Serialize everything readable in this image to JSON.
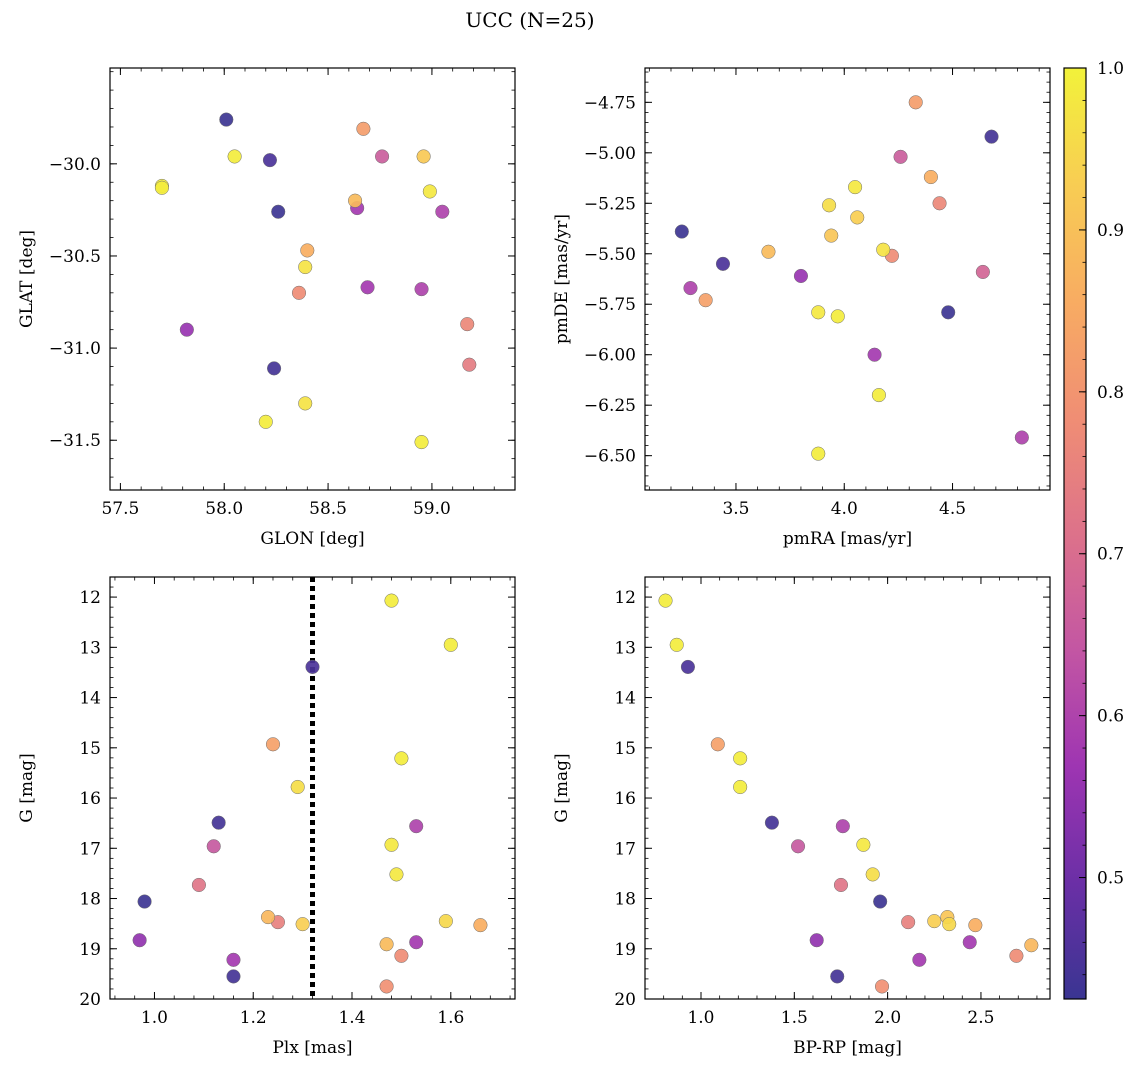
{
  "suptitle": "UCC (N=25)",
  "colorbar": {
    "ticks": [
      0.5,
      0.6,
      0.7,
      0.8,
      0.9,
      1.0
    ],
    "tick_labels": [
      "0.5",
      "0.6",
      "0.7",
      "0.8",
      "0.9",
      "1.0"
    ],
    "range": [
      0.425,
      1.0
    ],
    "colormap": "plasma",
    "colormap_stops": [
      "#3a3592",
      "#6b2fa6",
      "#9e35b2",
      "#c356a3",
      "#dd728a",
      "#f08e74",
      "#f8ac62",
      "#f8cd53",
      "#f2f23a"
    ]
  },
  "chart_data": [
    {
      "type": "scatter",
      "xlabel": "GLON [deg]",
      "ylabel": "GLAT [deg]",
      "xlim": [
        57.45,
        59.4
      ],
      "ylim": [
        -31.77,
        -29.48
      ],
      "xticks": [
        57.5,
        58.0,
        58.5,
        59.0
      ],
      "xtick_labels": [
        "57.5",
        "58.0",
        "58.5",
        "59.0"
      ],
      "yticks": [
        -30.0,
        -30.5,
        -31.0,
        -31.5
      ],
      "ytick_labels": [
        "−30.0",
        "−30.5",
        "−31.0",
        "−31.5"
      ],
      "points": [
        {
          "x": 58.01,
          "y": -29.76,
          "c": 0.43
        },
        {
          "x": 58.22,
          "y": -29.98,
          "c": 0.45
        },
        {
          "x": 58.26,
          "y": -30.26,
          "c": 0.43
        },
        {
          "x": 58.24,
          "y": -31.11,
          "c": 0.44
        },
        {
          "x": 57.82,
          "y": -30.9,
          "c": 0.56
        },
        {
          "x": 58.64,
          "y": -30.24,
          "c": 0.58
        },
        {
          "x": 58.69,
          "y": -30.67,
          "c": 0.58
        },
        {
          "x": 58.95,
          "y": -30.68,
          "c": 0.6
        },
        {
          "x": 59.05,
          "y": -30.26,
          "c": 0.6
        },
        {
          "x": 58.76,
          "y": -29.96,
          "c": 0.66
        },
        {
          "x": 58.36,
          "y": -30.7,
          "c": 0.78
        },
        {
          "x": 59.18,
          "y": -31.09,
          "c": 0.74
        },
        {
          "x": 59.17,
          "y": -30.87,
          "c": 0.77
        },
        {
          "x": 58.67,
          "y": -29.81,
          "c": 0.82
        },
        {
          "x": 58.4,
          "y": -30.47,
          "c": 0.86
        },
        {
          "x": 58.63,
          "y": -30.2,
          "c": 0.89
        },
        {
          "x": 58.96,
          "y": -29.96,
          "c": 0.92
        },
        {
          "x": 57.7,
          "y": -30.12,
          "c": 0.99
        },
        {
          "x": 58.05,
          "y": -29.96,
          "c": 0.99
        },
        {
          "x": 58.99,
          "y": -30.15,
          "c": 0.98
        },
        {
          "x": 58.39,
          "y": -30.56,
          "c": 0.97
        },
        {
          "x": 58.39,
          "y": -31.3,
          "c": 0.97
        },
        {
          "x": 58.2,
          "y": -31.4,
          "c": 0.99
        },
        {
          "x": 58.95,
          "y": -31.51,
          "c": 0.99
        },
        {
          "x": 57.7,
          "y": -30.13,
          "c": 0.99
        }
      ]
    },
    {
      "type": "scatter",
      "xlabel": "pmRA [mas/yr]",
      "ylabel": "pmDE [mas/yr]",
      "xlim": [
        3.08,
        4.95
      ],
      "ylim": [
        -6.67,
        -4.58
      ],
      "xticks": [
        3.5,
        4.0,
        4.5
      ],
      "xtick_labels": [
        "3.5",
        "4.0",
        "4.5"
      ],
      "yticks": [
        -4.75,
        -5.0,
        -5.25,
        -5.5,
        -5.75,
        -6.0,
        -6.25,
        -6.5
      ],
      "ytick_labels": [
        "−4.75",
        "−5.00",
        "−5.25",
        "−5.50",
        "−5.75",
        "−6.00",
        "−6.25",
        "−6.50"
      ],
      "points": [
        {
          "x": 3.25,
          "y": -5.39,
          "c": 0.43
        },
        {
          "x": 3.44,
          "y": -5.55,
          "c": 0.45
        },
        {
          "x": 4.68,
          "y": -4.92,
          "c": 0.44
        },
        {
          "x": 4.48,
          "y": -5.79,
          "c": 0.43
        },
        {
          "x": 3.29,
          "y": -5.67,
          "c": 0.6
        },
        {
          "x": 3.8,
          "y": -5.61,
          "c": 0.56
        },
        {
          "x": 4.14,
          "y": -6.0,
          "c": 0.58
        },
        {
          "x": 4.82,
          "y": -6.41,
          "c": 0.6
        },
        {
          "x": 4.26,
          "y": -5.02,
          "c": 0.66
        },
        {
          "x": 4.64,
          "y": -5.59,
          "c": 0.68
        },
        {
          "x": 4.33,
          "y": -4.75,
          "c": 0.82
        },
        {
          "x": 4.44,
          "y": -5.25,
          "c": 0.77
        },
        {
          "x": 4.22,
          "y": -5.51,
          "c": 0.78
        },
        {
          "x": 3.36,
          "y": -5.73,
          "c": 0.83
        },
        {
          "x": 4.4,
          "y": -5.12,
          "c": 0.86
        },
        {
          "x": 3.65,
          "y": -5.49,
          "c": 0.89
        },
        {
          "x": 3.94,
          "y": -5.41,
          "c": 0.91
        },
        {
          "x": 4.06,
          "y": -5.32,
          "c": 0.93
        },
        {
          "x": 3.93,
          "y": -5.26,
          "c": 0.96
        },
        {
          "x": 4.05,
          "y": -5.17,
          "c": 0.98
        },
        {
          "x": 4.18,
          "y": -5.48,
          "c": 0.97
        },
        {
          "x": 3.88,
          "y": -5.79,
          "c": 0.98
        },
        {
          "x": 3.97,
          "y": -5.81,
          "c": 0.99
        },
        {
          "x": 4.16,
          "y": -6.2,
          "c": 0.99
        },
        {
          "x": 3.88,
          "y": -6.49,
          "c": 0.99
        }
      ]
    },
    {
      "type": "scatter",
      "xlabel": "Plx [mas]",
      "ylabel": "G [mag]",
      "xlim": [
        0.91,
        1.73
      ],
      "ylim": [
        20.0,
        11.6
      ],
      "y_inverted": true,
      "vline": {
        "x": 1.32,
        "style": "dotted",
        "color": "#000000"
      },
      "xticks": [
        1.0,
        1.2,
        1.4,
        1.6
      ],
      "xtick_labels": [
        "1.0",
        "1.2",
        "1.4",
        "1.6"
      ],
      "yticks": [
        12,
        13,
        14,
        15,
        16,
        17,
        18,
        19,
        20
      ],
      "ytick_labels": [
        "12",
        "13",
        "14",
        "15",
        "16",
        "17",
        "18",
        "19",
        "20"
      ],
      "points": [
        {
          "x": 1.32,
          "y": 13.39,
          "c": 0.45
        },
        {
          "x": 1.13,
          "y": 16.49,
          "c": 0.44
        },
        {
          "x": 0.98,
          "y": 18.06,
          "c": 0.43
        },
        {
          "x": 1.16,
          "y": 19.55,
          "c": 0.44
        },
        {
          "x": 0.97,
          "y": 18.83,
          "c": 0.55
        },
        {
          "x": 1.16,
          "y": 19.22,
          "c": 0.58
        },
        {
          "x": 1.53,
          "y": 16.56,
          "c": 0.6
        },
        {
          "x": 1.53,
          "y": 18.87,
          "c": 0.58
        },
        {
          "x": 1.12,
          "y": 16.96,
          "c": 0.65
        },
        {
          "x": 1.09,
          "y": 17.73,
          "c": 0.72
        },
        {
          "x": 1.25,
          "y": 18.47,
          "c": 0.75
        },
        {
          "x": 1.47,
          "y": 19.75,
          "c": 0.79
        },
        {
          "x": 1.5,
          "y": 19.14,
          "c": 0.78
        },
        {
          "x": 1.24,
          "y": 14.93,
          "c": 0.83
        },
        {
          "x": 1.66,
          "y": 18.53,
          "c": 0.86
        },
        {
          "x": 1.23,
          "y": 18.37,
          "c": 0.88
        },
        {
          "x": 1.47,
          "y": 18.91,
          "c": 0.89
        },
        {
          "x": 1.3,
          "y": 18.51,
          "c": 0.93
        },
        {
          "x": 1.59,
          "y": 18.45,
          "c": 0.95
        },
        {
          "x": 1.29,
          "y": 15.78,
          "c": 0.96
        },
        {
          "x": 1.49,
          "y": 17.52,
          "c": 0.98
        },
        {
          "x": 1.48,
          "y": 16.93,
          "c": 0.98
        },
        {
          "x": 1.5,
          "y": 15.21,
          "c": 0.99
        },
        {
          "x": 1.6,
          "y": 12.95,
          "c": 0.99
        },
        {
          "x": 1.48,
          "y": 12.07,
          "c": 0.99
        }
      ]
    },
    {
      "type": "scatter",
      "xlabel": "BP-RP [mag]",
      "ylabel": "G [mag]",
      "xlim": [
        0.7,
        2.87
      ],
      "ylim": [
        20.0,
        11.6
      ],
      "y_inverted": true,
      "xticks": [
        1.0,
        1.5,
        2.0,
        2.5
      ],
      "xtick_labels": [
        "1.0",
        "1.5",
        "2.0",
        "2.5"
      ],
      "yticks": [
        12,
        13,
        14,
        15,
        16,
        17,
        18,
        19,
        20
      ],
      "ytick_labels": [
        "12",
        "13",
        "14",
        "15",
        "16",
        "17",
        "18",
        "19",
        "20"
      ],
      "points": [
        {
          "x": 0.93,
          "y": 13.39,
          "c": 0.45
        },
        {
          "x": 1.38,
          "y": 16.49,
          "c": 0.44
        },
        {
          "x": 1.96,
          "y": 18.06,
          "c": 0.43
        },
        {
          "x": 1.73,
          "y": 19.55,
          "c": 0.44
        },
        {
          "x": 1.62,
          "y": 18.83,
          "c": 0.55
        },
        {
          "x": 2.17,
          "y": 19.22,
          "c": 0.58
        },
        {
          "x": 1.76,
          "y": 16.56,
          "c": 0.6
        },
        {
          "x": 2.44,
          "y": 18.87,
          "c": 0.58
        },
        {
          "x": 1.52,
          "y": 16.96,
          "c": 0.65
        },
        {
          "x": 1.75,
          "y": 17.73,
          "c": 0.72
        },
        {
          "x": 2.11,
          "y": 18.47,
          "c": 0.75
        },
        {
          "x": 1.97,
          "y": 19.75,
          "c": 0.79
        },
        {
          "x": 2.69,
          "y": 19.14,
          "c": 0.78
        },
        {
          "x": 1.09,
          "y": 14.93,
          "c": 0.83
        },
        {
          "x": 2.47,
          "y": 18.53,
          "c": 0.86
        },
        {
          "x": 2.77,
          "y": 18.93,
          "c": 0.88
        },
        {
          "x": 2.32,
          "y": 18.37,
          "c": 0.91
        },
        {
          "x": 2.25,
          "y": 18.45,
          "c": 0.93
        },
        {
          "x": 2.33,
          "y": 18.51,
          "c": 0.95
        },
        {
          "x": 1.92,
          "y": 17.52,
          "c": 0.96
        },
        {
          "x": 1.87,
          "y": 16.93,
          "c": 0.98
        },
        {
          "x": 1.21,
          "y": 15.21,
          "c": 0.99
        },
        {
          "x": 1.21,
          "y": 15.78,
          "c": 0.99
        },
        {
          "x": 0.87,
          "y": 12.95,
          "c": 0.99
        },
        {
          "x": 0.81,
          "y": 12.07,
          "c": 0.99
        }
      ]
    }
  ]
}
